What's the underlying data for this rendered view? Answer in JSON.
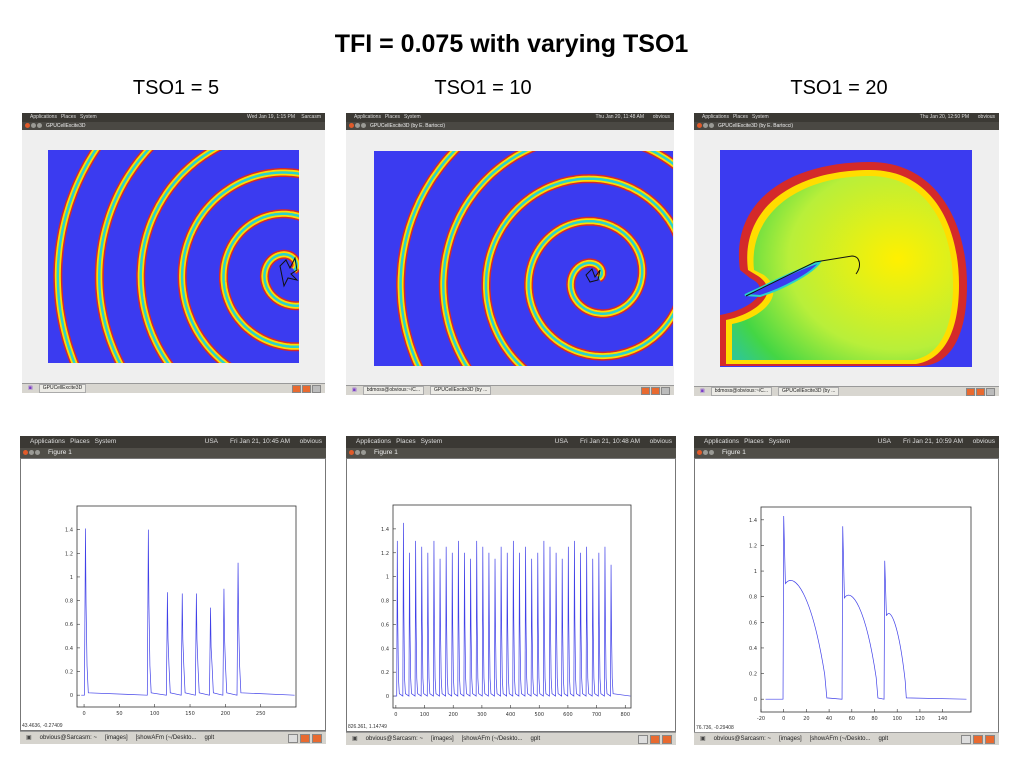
{
  "title": "TFI = 0.075 with varying TSO1",
  "columns": [
    {
      "label": "TSO1 = 5"
    },
    {
      "label": "TSO1 = 10"
    },
    {
      "label": "TSO1 = 20"
    }
  ],
  "colors": {
    "sim_background": "#3b3bf0",
    "ring_outer": "#d42a2a",
    "ring_mid": "#ffdd00",
    "ring_inner": "#2ad4c8",
    "green_wave": "#b8ef3a",
    "trace": "#4040e8"
  },
  "top_shots": [
    {
      "menubar": {
        "apps": "Applications",
        "places": "Places",
        "system": "System",
        "clock": "Wed Jan 19, 1:15 PM",
        "user": "Sarcasm"
      },
      "window_title": "GPUCellExcite3D",
      "taskbar": [
        "GPUCellExcite3D"
      ]
    },
    {
      "menubar": {
        "apps": "Applications",
        "places": "Places",
        "system": "System",
        "clock": "Thu Jan 20, 11:48 AM",
        "user": "obvious"
      },
      "window_title": "GPUCellExcite3D (by E. Bartocci)",
      "taskbar": [
        "bdmoss@obvious:~/C...",
        "GPUCellExcite3D (by ..."
      ]
    },
    {
      "menubar": {
        "apps": "Applications",
        "places": "Places",
        "system": "System",
        "clock": "Thu Jan 20, 12:50 PM",
        "user": "obvious"
      },
      "window_title": "GPUCellExcite3D (by E. Bartocci)",
      "taskbar": [
        "bdmoss@obvious:~/C...",
        "GPUCellExcite3D (by ..."
      ]
    }
  ],
  "bottom_shots": [
    {
      "menubar": {
        "apps": "Applications",
        "places": "Places",
        "system": "System",
        "locale": "USA",
        "clock": "Fri Jan 21, 10:45 AM",
        "user": "obvious"
      },
      "window_title": "Figure 1",
      "coord_readout": "43.4636, -0.27409",
      "taskbar": [
        "obvious@Sarcasm: ~",
        "[images]",
        "[showAFm (~/Deskto...",
        "gplt"
      ],
      "chart_data": {
        "type": "line",
        "xlim": [
          -10,
          300
        ],
        "ylim": [
          -0.1,
          1.6
        ],
        "x_ticks": [
          0,
          50,
          100,
          150,
          200,
          250
        ],
        "y_ticks": [
          0,
          0.2,
          0.4,
          0.6,
          0.8,
          1,
          1.2,
          1.4
        ],
        "peaks": [
          [
            2,
            1.41
          ],
          [
            91,
            1.4
          ],
          [
            118,
            0.87
          ],
          [
            139,
            0.86
          ],
          [
            159,
            0.86
          ],
          [
            179,
            0.74
          ],
          [
            198,
            0.9
          ],
          [
            218,
            1.12
          ]
        ],
        "baseline": 0
      }
    },
    {
      "menubar": {
        "apps": "Applications",
        "places": "Places",
        "system": "System",
        "locale": "USA",
        "clock": "Fri Jan 21, 10:48 AM",
        "user": "obvious"
      },
      "window_title": "Figure 1",
      "coord_readout": "826.361, 1.14749",
      "taskbar": [
        "obvious@Sarcasm: ~",
        "[images]",
        "[showAFm (~/Deskto...",
        "gplt"
      ],
      "chart_data": {
        "type": "line",
        "xlim": [
          -10,
          820
        ],
        "ylim": [
          -0.1,
          1.6
        ],
        "x_ticks": [
          0,
          100,
          200,
          300,
          400,
          500,
          600,
          700,
          800
        ],
        "y_ticks": [
          0,
          0.2,
          0.4,
          0.6,
          0.8,
          1,
          1.2,
          1.4
        ],
        "peak_count": 36,
        "peak_start": 5,
        "peak_spacing": 21.3,
        "peak_heights": [
          1.3,
          1.45,
          1.2,
          1.3,
          1.25,
          1.2,
          1.3,
          1.15,
          1.25,
          1.2,
          1.3,
          1.2,
          1.15,
          1.3,
          1.25,
          1.2,
          1.15,
          1.25,
          1.2,
          1.3,
          1.2,
          1.25,
          1.15,
          1.2,
          1.3,
          1.25,
          1.2,
          1.15,
          1.25,
          1.3,
          1.2,
          1.25,
          1.15,
          1.2,
          1.25,
          1.1
        ],
        "baseline": 0
      }
    },
    {
      "menubar": {
        "apps": "Applications",
        "places": "Places",
        "system": "System",
        "locale": "USA",
        "clock": "Fri Jan 21, 10:59 AM",
        "user": "obvious"
      },
      "window_title": "Figure 1",
      "coord_readout": "76.736, -0.29408",
      "taskbar": [
        "obvious@Sarcasm: ~",
        "[images]",
        "[showAFm (~/Deskto...",
        "gplt"
      ],
      "chart_data": {
        "type": "line",
        "xlim": [
          -20,
          165
        ],
        "ylim": [
          -0.1,
          1.5
        ],
        "x_ticks": [
          -20,
          0,
          20,
          40,
          60,
          80,
          100,
          120,
          140
        ],
        "y_ticks": [
          0,
          0.2,
          0.4,
          0.6,
          0.8,
          1,
          1.2,
          1.4
        ],
        "segments": [
          {
            "start": 0,
            "peak": 1.43,
            "plateau": 0.97,
            "end": 38
          },
          {
            "start": 52,
            "peak": 1.35,
            "plateau": 0.85,
            "end": 83
          },
          {
            "start": 89,
            "peak": 1.08,
            "plateau": 0.7,
            "end": 108
          }
        ],
        "baseline": 0
      }
    }
  ]
}
